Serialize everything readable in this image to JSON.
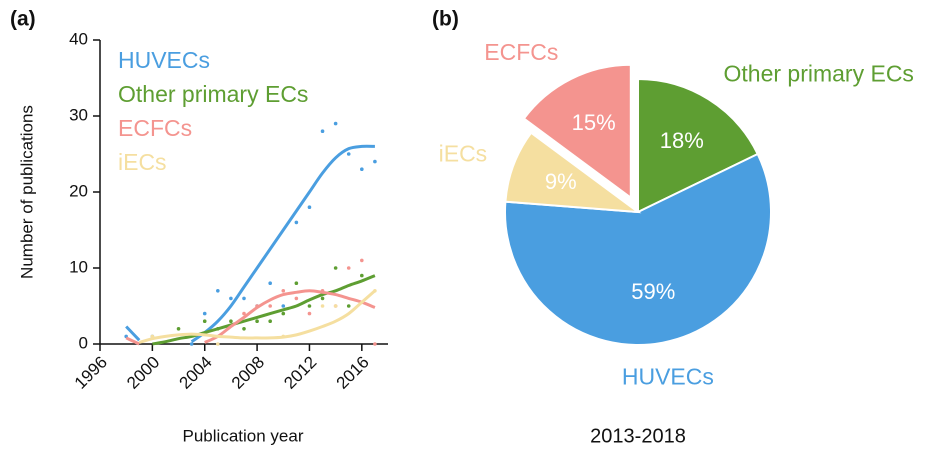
{
  "chart_data": [
    {
      "type": "scatter",
      "panel_label": "(a)",
      "xlabel": "Publication year",
      "ylabel": "Number of publications",
      "x": [
        1998,
        1999,
        2000,
        2001,
        2002,
        2003,
        2004,
        2005,
        2006,
        2007,
        2008,
        2009,
        2010,
        2011,
        2012,
        2013,
        2014,
        2015,
        2016,
        2017
      ],
      "xlim": [
        1996,
        2018
      ],
      "xticks": [
        1996,
        2000,
        2004,
        2008,
        2012,
        2016
      ],
      "ylim": [
        0,
        40
      ],
      "yticks": [
        0,
        10,
        20,
        30,
        40
      ],
      "series": [
        {
          "name": "HUVECs",
          "color": "#4a9ee0",
          "values": [
            1,
            null,
            1,
            null,
            null,
            0,
            4,
            7,
            6,
            6,
            5,
            8,
            5,
            16,
            18,
            28,
            29,
            25,
            23,
            24
          ],
          "fit": [
            2.3,
            0.5,
            null,
            null,
            null,
            0.3,
            1.5,
            3,
            5,
            7.5,
            10,
            12.5,
            15,
            17.5,
            20,
            22.5,
            24.5,
            25.7,
            26,
            26
          ]
        },
        {
          "name": "Other primary ECs",
          "color": "#5e9e32",
          "values": [
            null,
            null,
            null,
            null,
            2,
            null,
            3,
            2,
            3,
            2,
            3,
            3,
            4,
            8,
            5,
            6,
            10,
            5,
            9,
            null
          ],
          "fit": [
            null,
            null,
            0,
            0.3,
            0.7,
            1,
            1.5,
            2,
            2.5,
            3,
            3.5,
            4,
            4.5,
            5,
            5.8,
            6.5,
            7,
            7.7,
            8.3,
            9
          ]
        },
        {
          "name": "ECFCs",
          "color": "#f4948f",
          "values": [
            null,
            null,
            null,
            null,
            null,
            null,
            null,
            null,
            null,
            4,
            5,
            5,
            7,
            6,
            4,
            7,
            5,
            10,
            11,
            0
          ],
          "fit": [
            0.8,
            0,
            null,
            null,
            null,
            null,
            0.2,
            1,
            2.3,
            3.5,
            4.8,
            5.8,
            6.5,
            6.8,
            7,
            6.8,
            6.5,
            6,
            5.5,
            4.8
          ]
        },
        {
          "name": "iECs",
          "color": "#f5dfa0",
          "values": [
            null,
            null,
            1,
            null,
            null,
            null,
            null,
            0,
            null,
            null,
            null,
            null,
            1,
            null,
            null,
            5,
            5,
            null,
            null,
            7
          ],
          "fit": [
            null,
            0.2,
            0.7,
            1,
            1.2,
            1.3,
            1.2,
            1,
            0.9,
            0.8,
            0.8,
            0.8,
            0.9,
            1.2,
            1.7,
            2.3,
            3,
            4,
            5.5,
            7
          ]
        }
      ]
    },
    {
      "type": "pie",
      "panel_label": "(b)",
      "subtitle": "2013-2018",
      "categories": [
        "Other primary ECs",
        "HUVECs",
        "iECs",
        "ECFCs"
      ],
      "values": [
        18,
        59,
        9,
        15
      ],
      "value_labels": [
        "18%",
        "59%",
        "9%",
        "15%"
      ],
      "colors": [
        "#5e9e32",
        "#4a9ee0",
        "#f5dfa0",
        "#f4948f"
      ],
      "exploded": [
        "ECFCs"
      ]
    }
  ]
}
